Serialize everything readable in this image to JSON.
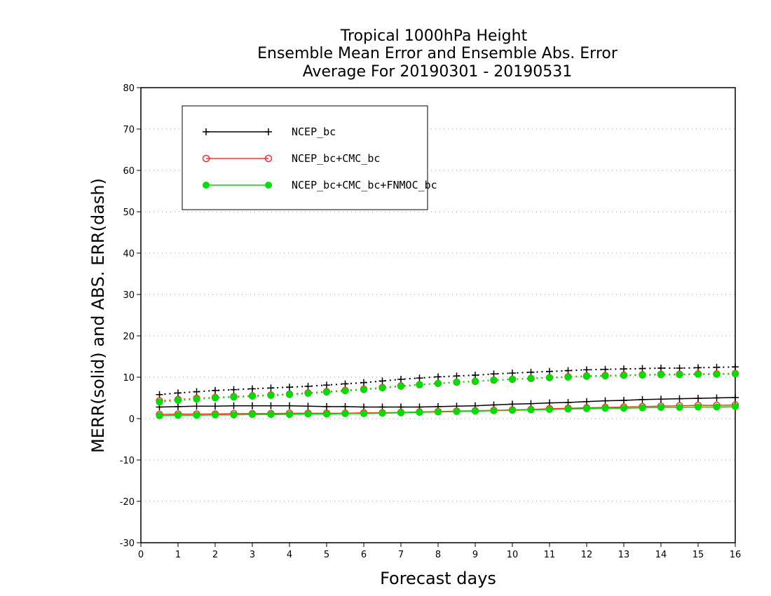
{
  "chart_data": {
    "type": "line",
    "title": [
      "Tropical 1000hPa Height",
      "Ensemble Mean Error and Ensemble Abs. Error",
      "Average For 20190301 - 20190531"
    ],
    "xlabel": "Forecast days",
    "ylabel": "MERR(solid) and ABS. ERR(dash)",
    "xlim": [
      0,
      16
    ],
    "ylim": [
      -30,
      80
    ],
    "xticks": [
      "0",
      "1",
      "2",
      "3",
      "4",
      "5",
      "6",
      "7",
      "8",
      "9",
      "10",
      "11",
      "12",
      "13",
      "14",
      "15",
      "16"
    ],
    "yticks": [
      "80",
      "70",
      "60",
      "50",
      "40",
      "30",
      "20",
      "10",
      "0",
      "-10",
      "-20",
      "-30"
    ],
    "grid": "horizontal-dotted",
    "legend_position": "top-left",
    "x": [
      0.5,
      1,
      1.5,
      2,
      2.5,
      3,
      3.5,
      4,
      4.5,
      5,
      5.5,
      6,
      6.5,
      7,
      7.5,
      8,
      8.5,
      9,
      9.5,
      10,
      10.5,
      11,
      11.5,
      12,
      12.5,
      13,
      13.5,
      14,
      14.5,
      15,
      15.5,
      16
    ],
    "series": [
      {
        "name": "NCEP_bc",
        "color": "#000000",
        "marker": "plus",
        "merr": [
          2.8,
          2.9,
          3.0,
          3.0,
          3.1,
          3.1,
          3.1,
          3.1,
          3.0,
          2.9,
          2.9,
          2.8,
          2.8,
          2.8,
          2.8,
          2.9,
          3.0,
          3.1,
          3.3,
          3.5,
          3.6,
          3.8,
          3.9,
          4.1,
          4.3,
          4.4,
          4.6,
          4.7,
          4.8,
          4.9,
          5.0,
          5.1
        ],
        "abs_err": [
          5.8,
          6.2,
          6.5,
          6.8,
          7.0,
          7.2,
          7.4,
          7.6,
          7.8,
          8.1,
          8.4,
          8.7,
          9.1,
          9.5,
          9.8,
          10.1,
          10.3,
          10.5,
          10.8,
          11.0,
          11.2,
          11.4,
          11.6,
          11.8,
          11.9,
          12.0,
          12.1,
          12.2,
          12.2,
          12.3,
          12.4,
          12.5
        ]
      },
      {
        "name": "NCEP_bc+CMC_bc",
        "color": "#ff3030",
        "marker": "open-circle",
        "merr": [
          1.0,
          1.1,
          1.1,
          1.1,
          1.2,
          1.2,
          1.2,
          1.3,
          1.3,
          1.3,
          1.3,
          1.4,
          1.4,
          1.5,
          1.6,
          1.7,
          1.8,
          1.9,
          2.0,
          2.1,
          2.2,
          2.4,
          2.5,
          2.6,
          2.7,
          2.8,
          2.9,
          3.0,
          3.1,
          3.2,
          3.2,
          3.3
        ],
        "abs_err": [
          4.3,
          4.6,
          4.9,
          5.1,
          5.3,
          5.5,
          5.7,
          5.9,
          6.2,
          6.5,
          6.8,
          7.1,
          7.5,
          7.9,
          8.2,
          8.5,
          8.8,
          9.0,
          9.3,
          9.5,
          9.7,
          9.9,
          10.1,
          10.3,
          10.4,
          10.5,
          10.6,
          10.7,
          10.7,
          10.8,
          10.8,
          10.9
        ]
      },
      {
        "name": "NCEP_bc+CMC_bc+FNMOC_bc",
        "color": "#00dd00",
        "marker": "filled-circle",
        "merr": [
          0.7,
          0.8,
          0.8,
          0.9,
          0.9,
          1.0,
          1.0,
          1.0,
          1.1,
          1.1,
          1.2,
          1.2,
          1.3,
          1.4,
          1.5,
          1.6,
          1.7,
          1.8,
          1.9,
          2.0,
          2.1,
          2.2,
          2.3,
          2.4,
          2.5,
          2.5,
          2.6,
          2.7,
          2.7,
          2.8,
          2.8,
          2.9
        ],
        "abs_err": [
          4.0,
          4.4,
          4.7,
          5.0,
          5.2,
          5.4,
          5.6,
          5.8,
          6.1,
          6.4,
          6.7,
          7.0,
          7.4,
          7.8,
          8.2,
          8.5,
          8.8,
          9.0,
          9.3,
          9.5,
          9.7,
          9.9,
          10.0,
          10.2,
          10.3,
          10.4,
          10.5,
          10.6,
          10.6,
          10.7,
          10.7,
          10.8
        ]
      }
    ]
  }
}
